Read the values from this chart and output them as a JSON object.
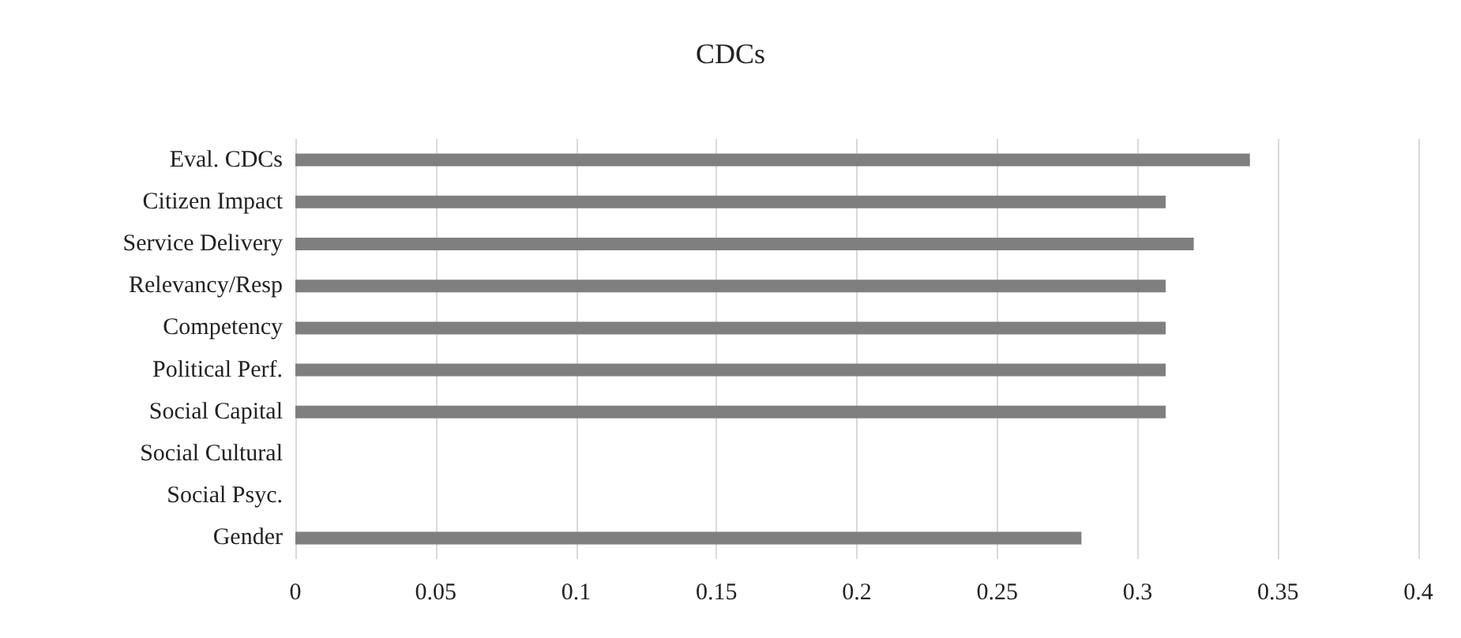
{
  "chart_data": {
    "type": "bar",
    "orientation": "horizontal",
    "title": "CDCs",
    "categories": [
      "Eval. CDCs",
      "Citizen Impact",
      "Service Delivery",
      "Relevancy/Resp",
      "Competency",
      "Political Perf.",
      "Social Capital",
      "Social Cultural",
      "Social Psyc.",
      "Gender"
    ],
    "values": [
      0.34,
      0.31,
      0.32,
      0.31,
      0.31,
      0.31,
      0.31,
      null,
      null,
      0.28
    ],
    "color": "#7f7f7f",
    "xlim": [
      0,
      0.4
    ],
    "xticks": [
      0,
      0.05,
      0.1,
      0.15,
      0.2,
      0.25,
      0.3,
      0.35,
      0.4
    ],
    "grid": "x"
  }
}
